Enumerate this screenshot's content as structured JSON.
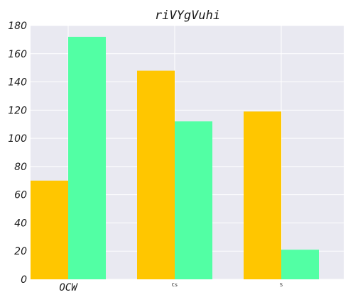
{
  "chart_data": {
    "type": "bar",
    "title": "riVYgVuhi",
    "xlabel": "",
    "ylabel": "",
    "categories": [
      "OCW",
      "Cs",
      "S"
    ],
    "series": [
      {
        "values": [
          70,
          148,
          119
        ],
        "color": "#ffc600"
      },
      {
        "values": [
          172,
          112,
          21
        ],
        "color": "#52ffa4"
      }
    ],
    "ylim": [
      0,
      180
    ],
    "yticks": [
      "0",
      "20",
      "40",
      "60",
      "80",
      "100",
      "120",
      "140",
      "160",
      "180"
    ],
    "grid": true,
    "legend": "none",
    "plot_background": "#e9e9f1",
    "grid_color": "#ffffff"
  }
}
